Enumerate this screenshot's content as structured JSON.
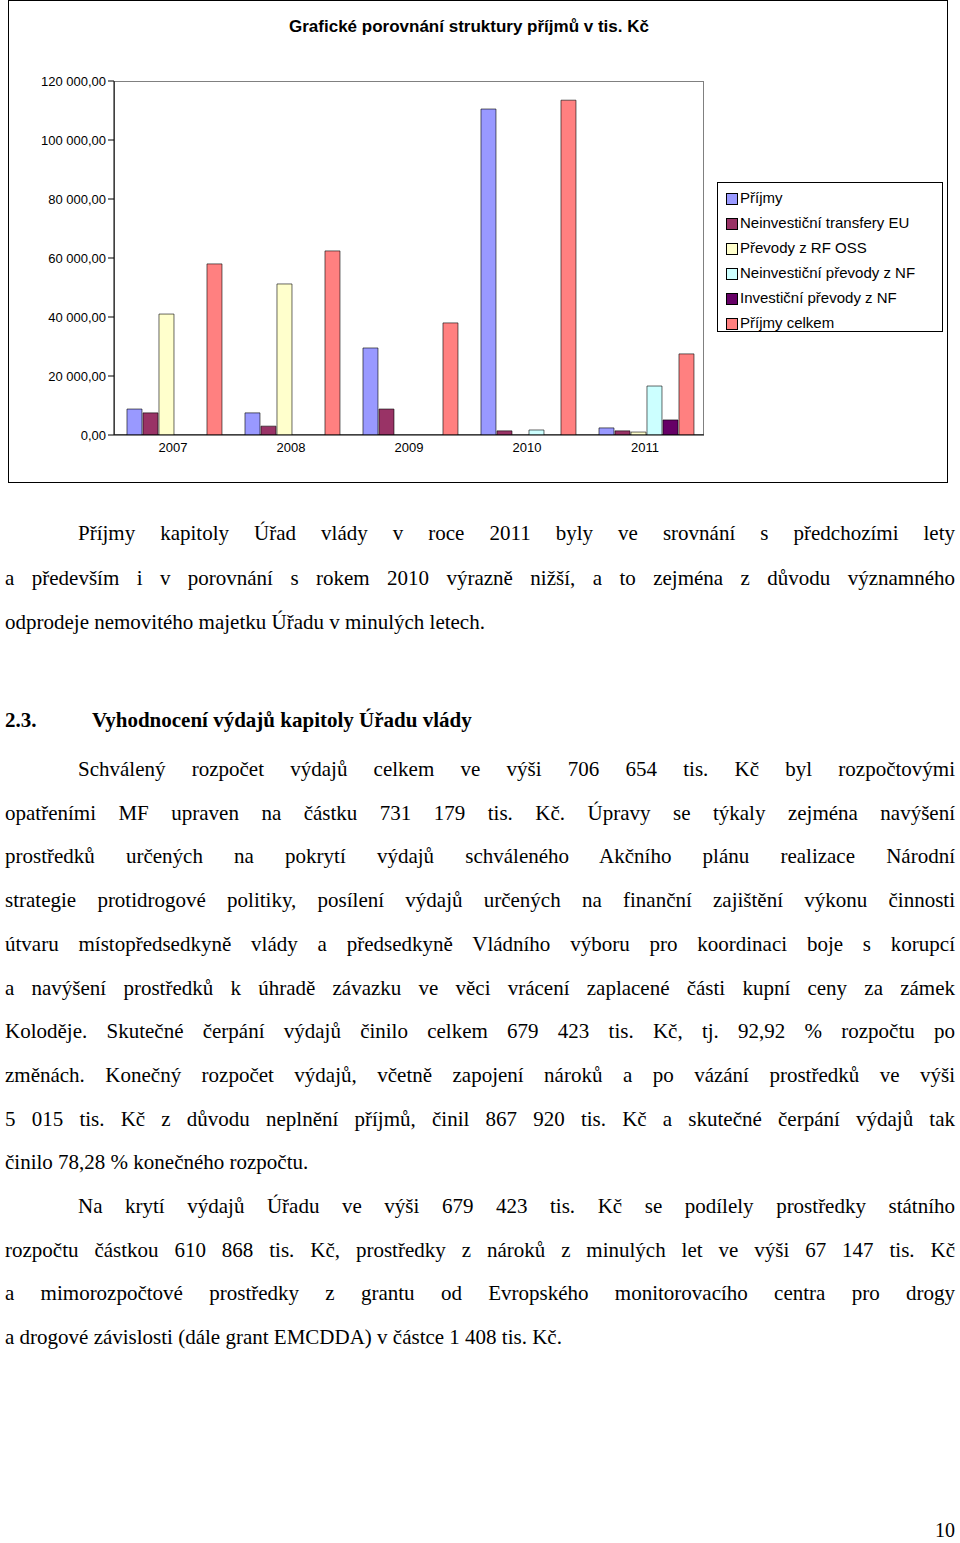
{
  "chart_data": {
    "type": "bar",
    "title": "Grafické porovnání struktury příjmů v tis. Kč",
    "categories": [
      "2007",
      "2008",
      "2009",
      "2010",
      "2011"
    ],
    "series": [
      {
        "name": "Příjmy",
        "color": "#9999ff",
        "values": [
          8800,
          7500,
          29500,
          110500,
          2400
        ]
      },
      {
        "name": "Neinvestiční transfery EU",
        "color": "#993366",
        "values": [
          7500,
          3000,
          8800,
          1400,
          1400
        ]
      },
      {
        "name": "Převody z RF OSS",
        "color": "#ffffcc",
        "values": [
          41000,
          51200,
          0,
          0,
          1000
        ]
      },
      {
        "name": "Neinvestiční převody z NF",
        "color": "#ccffff",
        "values": [
          0,
          0,
          0,
          1700,
          16600
        ]
      },
      {
        "name": "Investiční převody z NF",
        "color": "#660066",
        "values": [
          0,
          0,
          0,
          0,
          5100
        ]
      },
      {
        "name": "Příjmy celkem",
        "color": "#ff8080",
        "values": [
          58000,
          62400,
          38000,
          113500,
          27500
        ]
      }
    ],
    "ylim": [
      0,
      120000
    ],
    "yticks": [
      {
        "value": 0,
        "label": "0,00"
      },
      {
        "value": 20000,
        "label": "20 000,00"
      },
      {
        "value": 40000,
        "label": "40 000,00"
      },
      {
        "value": 60000,
        "label": "60 000,00"
      },
      {
        "value": 80000,
        "label": "80 000,00"
      },
      {
        "value": 100000,
        "label": "100 000,00"
      },
      {
        "value": 120000,
        "label": "120 000,00"
      }
    ],
    "grid": false,
    "legend": "right"
  },
  "document": {
    "intro": {
      "lines": [
        "Příjmy kapitoly Úřad vlády v roce 2011 byly ve srovnání s předchozími lety",
        "a především i v porovnání s rokem 2010 výrazně nižší, a to zejména z důvodu významného",
        "odprodeje nemovitého majetku Úřadu v minulých letech."
      ]
    },
    "heading": {
      "number": "2.3.",
      "title": "Vyhodnocení výdajů kapitoly Úřadu vlády"
    },
    "paragraphs": [
      {
        "lines": [
          "Schválený rozpočet výdajů celkem ve výši 706 654 tis. Kč byl rozpočtovými",
          "opatřeními MF upraven na částku 731 179 tis. Kč. Úpravy se týkaly zejména navýšení",
          "prostředků určených na pokrytí výdajů schváleného Akčního plánu realizace Národní",
          "strategie protidrogové politiky, posílení výdajů určených na finanční zajištění výkonu činnosti",
          "útvaru místopředsedkyně vlády a předsedkyně Vládního výboru pro koordinaci boje s korupcí",
          "a navýšení prostředků k úhradě závazku ve věci vrácení zaplacené části kupní ceny za zámek",
          "Koloděje. Skutečné čerpání výdajů činilo celkem 679 423 tis. Kč, tj. 92,92 % rozpočtu po",
          "změnách. Konečný rozpočet výdajů, včetně zapojení nároků a po vázání prostředků ve výši",
          "5 015 tis. Kč z důvodu neplnění příjmů, činil 867 920 tis. Kč a skutečné čerpání výdajů tak",
          "činilo 78,28 % konečného rozpočtu."
        ]
      },
      {
        "lines": [
          "Na krytí výdajů Úřadu ve výši 679 423 tis. Kč se podílely prostředky státního",
          "rozpočtu částkou 610 868 tis. Kč, prostředky z nároků z minulých let ve výši 67 147 tis. Kč",
          "a mimorozpočtové prostředky z grantu od Evropského monitorovacího centra pro drogy",
          "a drogové závislosti (dále grant EMCDDA) v částce 1 408 tis. Kč."
        ]
      }
    ],
    "page_number": "10"
  }
}
